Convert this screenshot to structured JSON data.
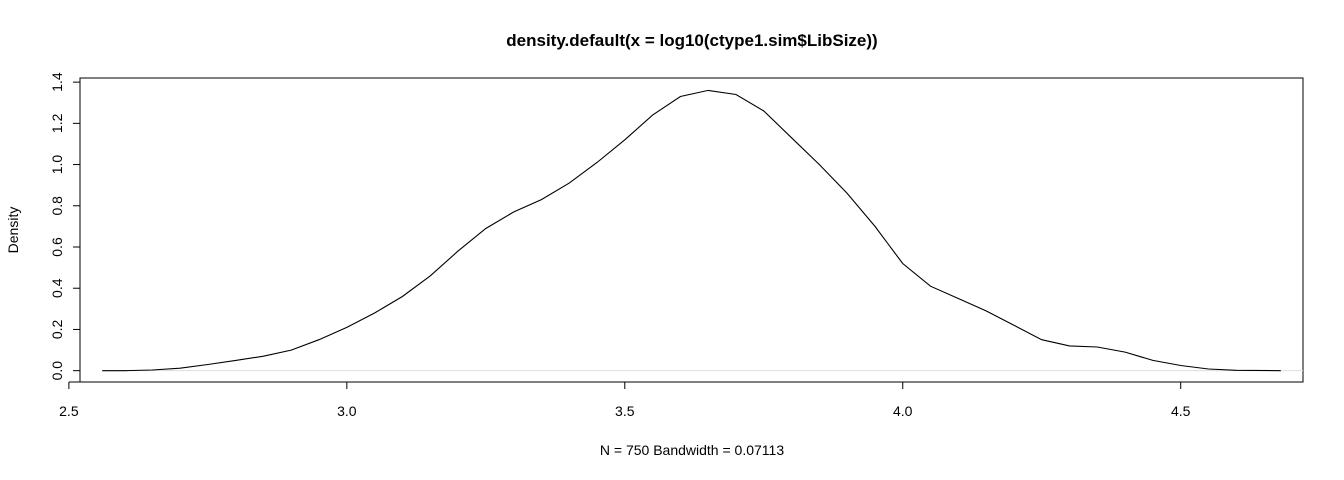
{
  "chart_data": {
    "type": "line",
    "title": "density.default(x = log10(ctype1.sim$LibSize))",
    "xlabel": "N = 750   Bandwidth = 0.07113",
    "ylabel": "Density",
    "xlim": [
      2.52,
      4.72
    ],
    "ylim": [
      -0.055,
      1.42
    ],
    "x_ticks": [
      2.5,
      3.0,
      3.5,
      4.0,
      4.5
    ],
    "x_tick_labels": [
      "2.5",
      "3.0",
      "3.5",
      "4.0",
      "4.5"
    ],
    "y_ticks": [
      0.0,
      0.2,
      0.4,
      0.6,
      0.8,
      1.0,
      1.2,
      1.4
    ],
    "y_tick_labels": [
      "0.0",
      "0.2",
      "0.4",
      "0.6",
      "0.8",
      "1.0",
      "1.2",
      "1.4"
    ],
    "grid": false,
    "legend": "none",
    "baseline": 0,
    "colors": {
      "line": "#000000",
      "baseline": "#dddddd",
      "frame": "#000000"
    },
    "series": [
      {
        "x": [
          2.56,
          2.6,
          2.65,
          2.7,
          2.75,
          2.8,
          2.85,
          2.9,
          2.95,
          3.0,
          3.05,
          3.1,
          3.15,
          3.2,
          3.25,
          3.3,
          3.35,
          3.4,
          3.45,
          3.5,
          3.55,
          3.6,
          3.65,
          3.7,
          3.75,
          3.8,
          3.85,
          3.9,
          3.95,
          4.0,
          4.05,
          4.1,
          4.15,
          4.2,
          4.25,
          4.3,
          4.35,
          4.4,
          4.45,
          4.5,
          4.55,
          4.6,
          4.68
        ],
        "y": [
          0.0,
          0.0,
          0.003,
          0.012,
          0.03,
          0.05,
          0.07,
          0.1,
          0.15,
          0.21,
          0.28,
          0.36,
          0.46,
          0.58,
          0.69,
          0.77,
          0.83,
          0.91,
          1.01,
          1.12,
          1.24,
          1.33,
          1.36,
          1.34,
          1.26,
          1.13,
          1.0,
          0.86,
          0.7,
          0.52,
          0.41,
          0.35,
          0.29,
          0.22,
          0.15,
          0.12,
          0.115,
          0.09,
          0.05,
          0.025,
          0.008,
          0.002,
          0.0
        ]
      }
    ]
  }
}
